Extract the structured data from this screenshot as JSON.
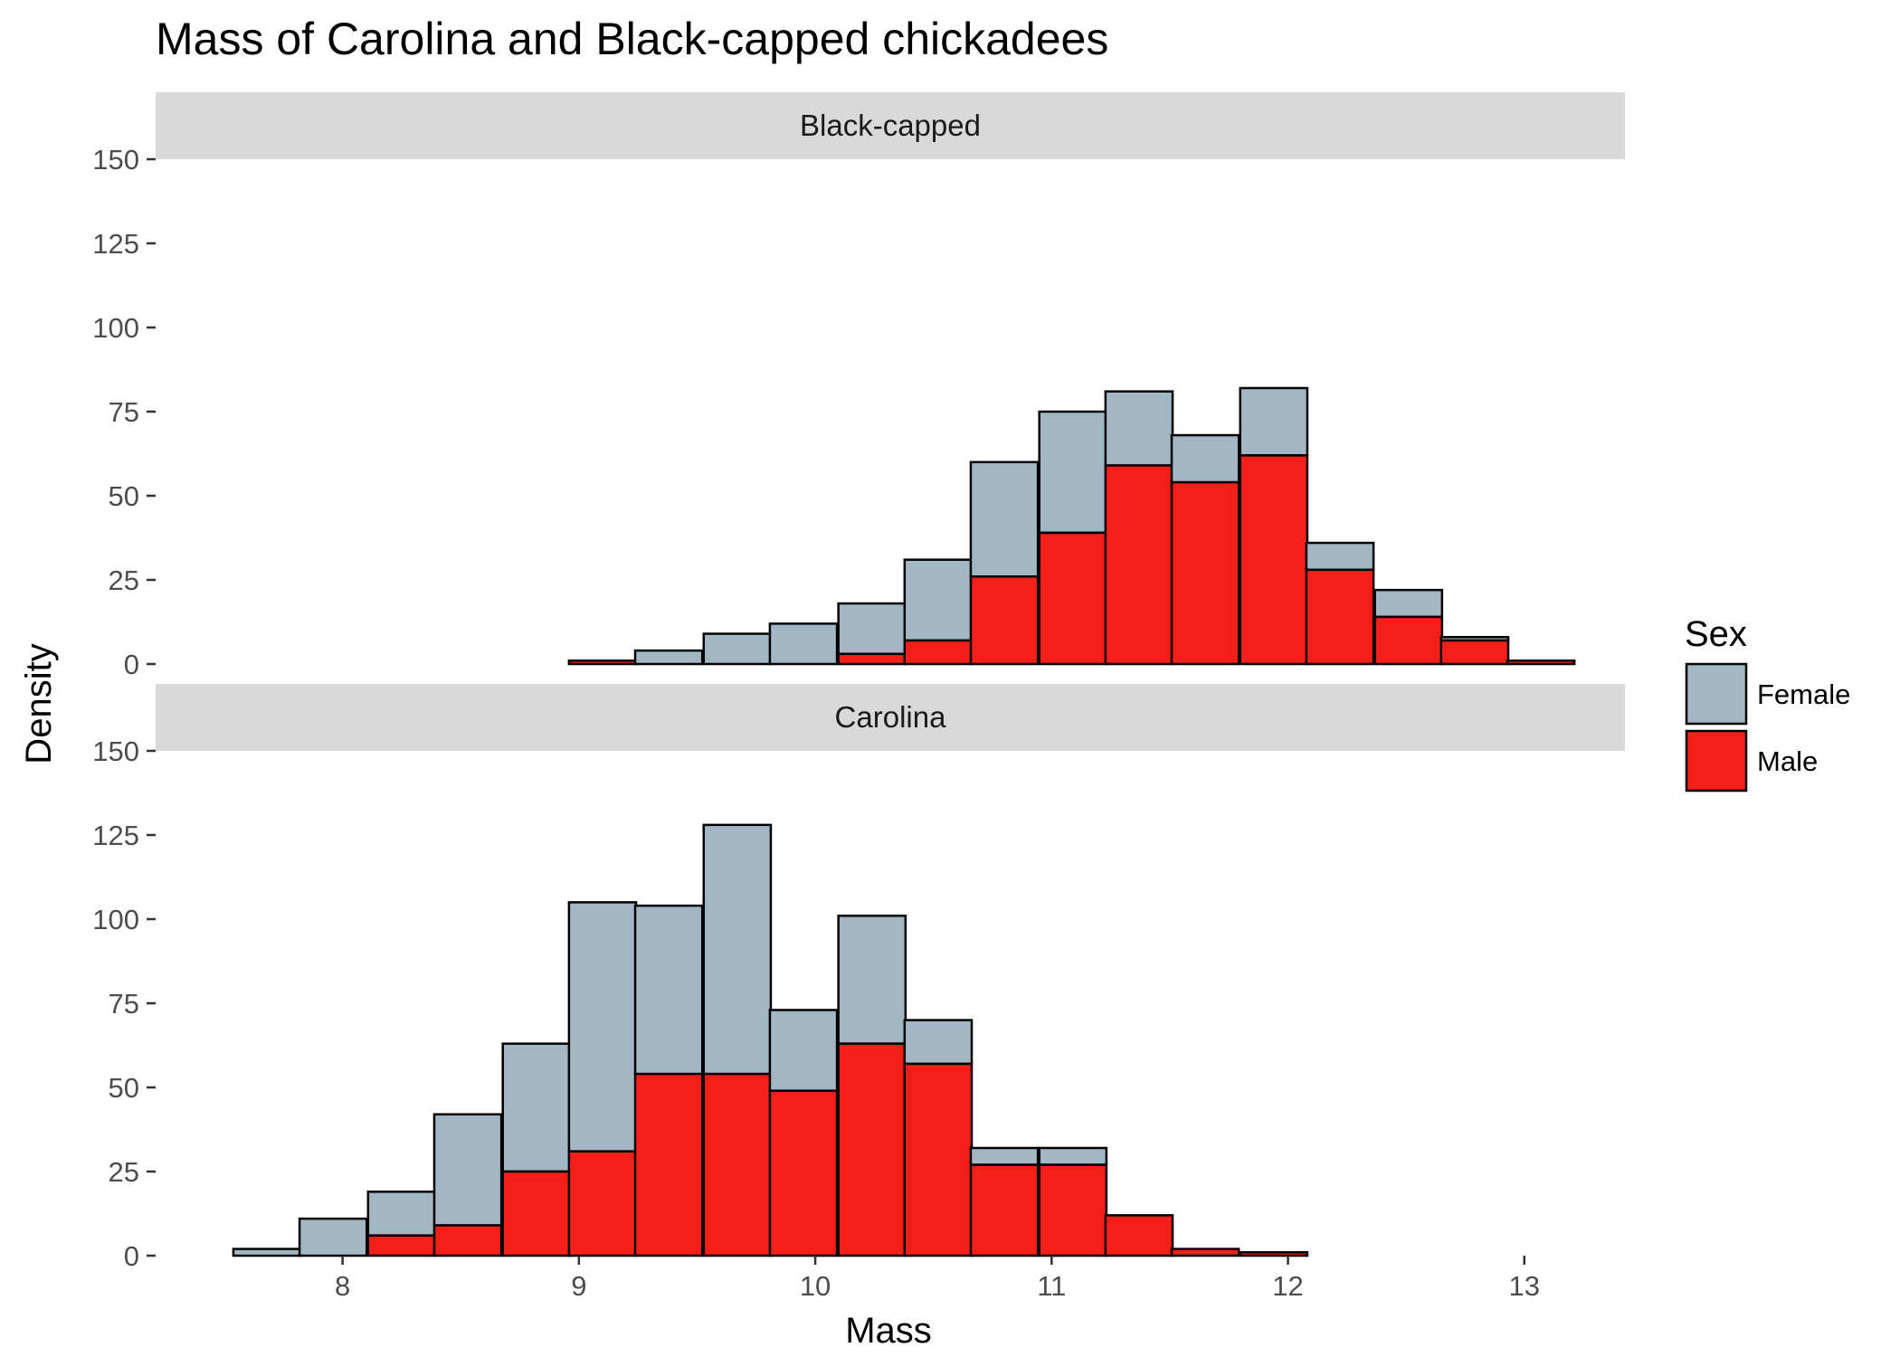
{
  "chart_data": {
    "type": "bar",
    "subtype": "stacked-histogram-faceted",
    "title": "Mass of Carolina and Black-capped chickadees",
    "xlabel": "Mass",
    "ylabel": "Density",
    "xlim": [
      7.5,
      13.2
    ],
    "ylim": [
      0,
      150
    ],
    "x_ticks": [
      8,
      9,
      10,
      11,
      12,
      13
    ],
    "y_ticks": [
      0,
      25,
      50,
      75,
      100,
      125,
      150
    ],
    "bin_width": 0.284,
    "bin_centers": [
      7.68,
      7.96,
      8.25,
      8.53,
      8.82,
      9.1,
      9.38,
      9.67,
      9.95,
      10.24,
      10.52,
      10.8,
      11.09,
      11.37,
      11.65,
      11.94,
      12.22,
      12.51,
      12.79,
      13.07
    ],
    "grid": false,
    "legend": {
      "title": "Sex",
      "position": "right",
      "entries": [
        {
          "name": "Female",
          "color": "#a2b6c3"
        },
        {
          "name": "Male",
          "color": "#f22019"
        }
      ]
    },
    "panels": [
      {
        "name": "Black-capped",
        "series": [
          {
            "name": "Male",
            "values": [
              0,
              0,
              0,
              0,
              0,
              1,
              0,
              0,
              0,
              3,
              7,
              26,
              39,
              59,
              54,
              62,
              28,
              14,
              7,
              1
            ]
          },
          {
            "name": "Female",
            "values": [
              0,
              0,
              0,
              0,
              0,
              0,
              4,
              9,
              12,
              15,
              24,
              34,
              36,
              22,
              14,
              20,
              8,
              8,
              1,
              0
            ]
          }
        ]
      },
      {
        "name": "Carolina",
        "series": [
          {
            "name": "Male",
            "values": [
              0,
              0,
              6,
              9,
              25,
              31,
              54,
              54,
              49,
              63,
              57,
              27,
              27,
              12,
              2,
              1,
              0,
              0,
              0,
              0
            ]
          },
          {
            "name": "Female",
            "values": [
              2,
              11,
              13,
              33,
              38,
              74,
              50,
              74,
              24,
              38,
              13,
              5,
              5,
              0,
              0,
              0,
              0,
              0,
              0,
              0
            ]
          }
        ]
      }
    ]
  }
}
